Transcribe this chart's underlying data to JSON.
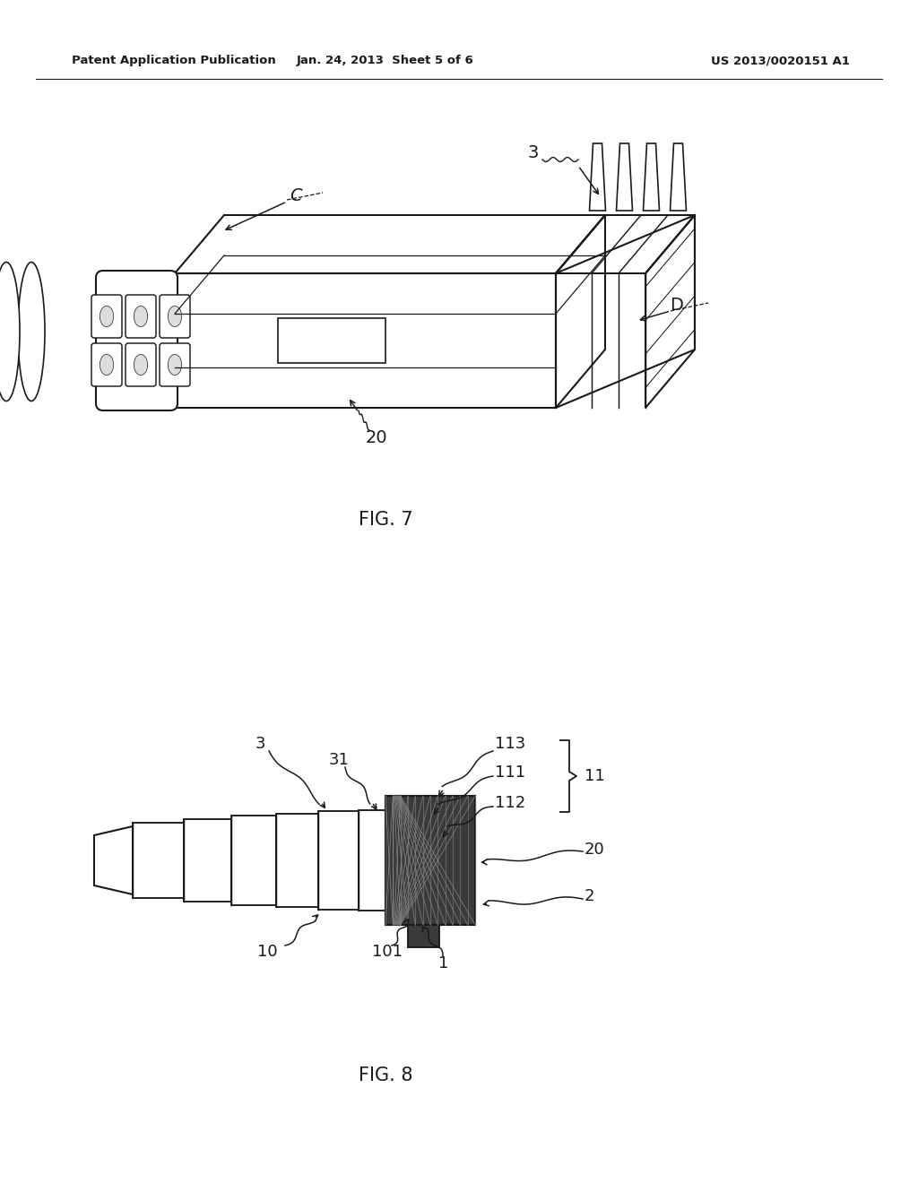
{
  "background_color": "#ffffff",
  "header_left": "Patent Application Publication",
  "header_mid": "Jan. 24, 2013  Sheet 5 of 6",
  "header_right": "US 2013/0020151 A1",
  "fig7_label": "FIG. 7",
  "fig8_label": "FIG. 8",
  "color_main": "#1a1a1a"
}
